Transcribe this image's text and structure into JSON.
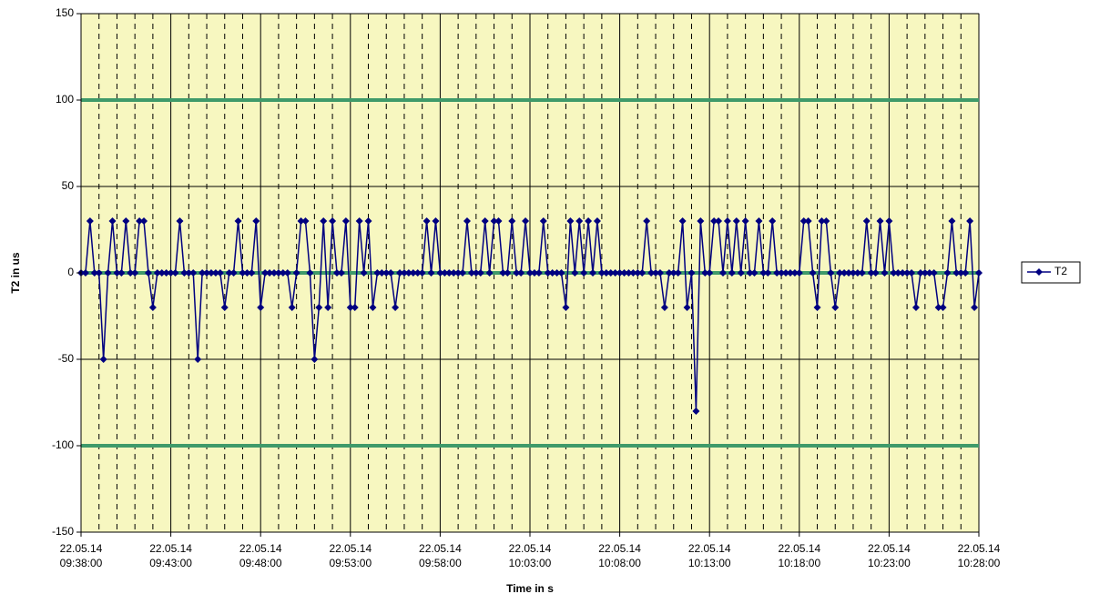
{
  "chart_data": {
    "type": "line",
    "x_label": "Time in s",
    "y_label": "T2 in us",
    "ylim": [
      -150,
      150
    ],
    "yticks": [
      -150,
      -100,
      -50,
      0,
      50,
      100,
      150
    ],
    "xlim": [
      "22.05.14 09:38:00",
      "22.05.14 10:28:00"
    ],
    "xticks": [
      "22.05.14 09:38:00",
      "22.05.14 09:43:00",
      "22.05.14 09:48:00",
      "22.05.14 09:53:00",
      "22.05.14 09:58:00",
      "22.05.14 10:03:00",
      "22.05.14 10:08:00",
      "22.05.14 10:13:00",
      "22.05.14 10:18:00",
      "22.05.14 10:23:00",
      "22.05.14 10:28:00"
    ],
    "grid": true,
    "legend": "right",
    "background": "#f7f7c0",
    "reference_lines": [
      {
        "value": 100,
        "color": "#3f9a6a"
      },
      {
        "value": -100,
        "color": "#3f9a6a"
      },
      {
        "value": 0,
        "color": "#3f9a6a"
      }
    ],
    "x": [
      "22.05.14 09:38:00",
      "22.05.14 09:38:15",
      "22.05.14 09:38:30",
      "22.05.14 09:38:45",
      "22.05.14 09:39:00",
      "22.05.14 09:39:15",
      "22.05.14 09:39:30",
      "22.05.14 09:39:45",
      "22.05.14 09:40:00",
      "22.05.14 09:40:15",
      "22.05.14 09:40:30",
      "22.05.14 09:40:45",
      "22.05.14 09:41:00",
      "22.05.14 09:41:15",
      "22.05.14 09:41:30",
      "22.05.14 09:41:45",
      "22.05.14 09:42:00",
      "22.05.14 09:42:15",
      "22.05.14 09:42:30",
      "22.05.14 09:42:45",
      "22.05.14 09:43:00",
      "22.05.14 09:43:15",
      "22.05.14 09:43:30",
      "22.05.14 09:43:45",
      "22.05.14 09:44:00",
      "22.05.14 09:44:15",
      "22.05.14 09:44:30",
      "22.05.14 09:44:45",
      "22.05.14 09:45:00",
      "22.05.14 09:45:15",
      "22.05.14 09:45:30",
      "22.05.14 09:45:45",
      "22.05.14 09:46:00",
      "22.05.14 09:46:15",
      "22.05.14 09:46:30",
      "22.05.14 09:46:45",
      "22.05.14 09:47:00",
      "22.05.14 09:47:15",
      "22.05.14 09:47:30",
      "22.05.14 09:47:45",
      "22.05.14 09:48:00",
      "22.05.14 09:48:15",
      "22.05.14 09:48:30",
      "22.05.14 09:48:45",
      "22.05.14 09:49:00",
      "22.05.14 09:49:15",
      "22.05.14 09:49:30",
      "22.05.14 09:49:45",
      "22.05.14 09:50:00",
      "22.05.14 09:50:15",
      "22.05.14 09:50:30",
      "22.05.14 09:50:45",
      "22.05.14 09:51:00",
      "22.05.14 09:51:15",
      "22.05.14 09:51:30",
      "22.05.14 09:51:45",
      "22.05.14 09:52:00",
      "22.05.14 09:52:15",
      "22.05.14 09:52:30",
      "22.05.14 09:52:45",
      "22.05.14 09:53:00",
      "22.05.14 09:53:15",
      "22.05.14 09:53:30",
      "22.05.14 09:53:45",
      "22.05.14 09:54:00",
      "22.05.14 09:54:15",
      "22.05.14 09:54:30",
      "22.05.14 09:54:45",
      "22.05.14 09:55:00",
      "22.05.14 09:55:15",
      "22.05.14 09:55:30",
      "22.05.14 09:55:45",
      "22.05.14 09:56:00",
      "22.05.14 09:56:15",
      "22.05.14 09:56:30",
      "22.05.14 09:56:45",
      "22.05.14 09:57:00",
      "22.05.14 09:57:15",
      "22.05.14 09:57:30",
      "22.05.14 09:57:45",
      "22.05.14 09:58:00",
      "22.05.14 09:58:15",
      "22.05.14 09:58:30",
      "22.05.14 09:58:45",
      "22.05.14 09:59:00",
      "22.05.14 09:59:15",
      "22.05.14 09:59:30",
      "22.05.14 09:59:45",
      "22.05.14 10:00:00",
      "22.05.14 10:00:15",
      "22.05.14 10:00:30",
      "22.05.14 10:00:45",
      "22.05.14 10:01:00",
      "22.05.14 10:01:15",
      "22.05.14 10:01:30",
      "22.05.14 10:01:45",
      "22.05.14 10:02:00",
      "22.05.14 10:02:15",
      "22.05.14 10:02:30",
      "22.05.14 10:02:45",
      "22.05.14 10:03:00",
      "22.05.14 10:03:15",
      "22.05.14 10:03:30",
      "22.05.14 10:03:45",
      "22.05.14 10:04:00",
      "22.05.14 10:04:15",
      "22.05.14 10:04:30",
      "22.05.14 10:04:45",
      "22.05.14 10:05:00",
      "22.05.14 10:05:15",
      "22.05.14 10:05:30",
      "22.05.14 10:05:45",
      "22.05.14 10:06:00",
      "22.05.14 10:06:15",
      "22.05.14 10:06:30",
      "22.05.14 10:06:45",
      "22.05.14 10:07:00",
      "22.05.14 10:07:15",
      "22.05.14 10:07:30",
      "22.05.14 10:07:45",
      "22.05.14 10:08:00",
      "22.05.14 10:08:15",
      "22.05.14 10:08:30",
      "22.05.14 10:08:45",
      "22.05.14 10:09:00",
      "22.05.14 10:09:15",
      "22.05.14 10:09:30",
      "22.05.14 10:09:45",
      "22.05.14 10:10:00",
      "22.05.14 10:10:15",
      "22.05.14 10:10:30",
      "22.05.14 10:10:45",
      "22.05.14 10:11:00",
      "22.05.14 10:11:15",
      "22.05.14 10:11:30",
      "22.05.14 10:11:45",
      "22.05.14 10:12:00",
      "22.05.14 10:12:15",
      "22.05.14 10:12:30",
      "22.05.14 10:12:45",
      "22.05.14 10:13:00",
      "22.05.14 10:13:15",
      "22.05.14 10:13:30",
      "22.05.14 10:13:45",
      "22.05.14 10:14:00",
      "22.05.14 10:14:15",
      "22.05.14 10:14:30",
      "22.05.14 10:14:45",
      "22.05.14 10:15:00",
      "22.05.14 10:15:15",
      "22.05.14 10:15:30",
      "22.05.14 10:15:45",
      "22.05.14 10:16:00",
      "22.05.14 10:16:15",
      "22.05.14 10:16:30",
      "22.05.14 10:16:45",
      "22.05.14 10:17:00",
      "22.05.14 10:17:15",
      "22.05.14 10:17:30",
      "22.05.14 10:17:45",
      "22.05.14 10:18:00",
      "22.05.14 10:18:15",
      "22.05.14 10:18:30",
      "22.05.14 10:18:45",
      "22.05.14 10:19:00",
      "22.05.14 10:19:15",
      "22.05.14 10:19:30",
      "22.05.14 10:19:45",
      "22.05.14 10:20:00",
      "22.05.14 10:20:15",
      "22.05.14 10:20:30",
      "22.05.14 10:20:45",
      "22.05.14 10:21:00",
      "22.05.14 10:21:15",
      "22.05.14 10:21:30",
      "22.05.14 10:21:45",
      "22.05.14 10:22:00",
      "22.05.14 10:22:15",
      "22.05.14 10:22:30",
      "22.05.14 10:22:45",
      "22.05.14 10:23:00",
      "22.05.14 10:23:15",
      "22.05.14 10:23:30",
      "22.05.14 10:23:45",
      "22.05.14 10:24:00",
      "22.05.14 10:24:15",
      "22.05.14 10:24:30",
      "22.05.14 10:24:45",
      "22.05.14 10:25:00",
      "22.05.14 10:25:15",
      "22.05.14 10:25:30",
      "22.05.14 10:25:45",
      "22.05.14 10:26:00",
      "22.05.14 10:26:15",
      "22.05.14 10:26:30",
      "22.05.14 10:26:45",
      "22.05.14 10:27:00",
      "22.05.14 10:27:15",
      "22.05.14 10:27:30",
      "22.05.14 10:27:45",
      "22.05.14 10:28:00"
    ],
    "series": [
      {
        "name": "T2",
        "color": "#000080",
        "values": [
          0,
          0,
          30,
          0,
          0,
          -50,
          0,
          30,
          0,
          0,
          30,
          0,
          0,
          30,
          30,
          0,
          -20,
          0,
          0,
          0,
          0,
          0,
          30,
          0,
          0,
          0,
          -50,
          0,
          0,
          0,
          0,
          0,
          -20,
          0,
          0,
          30,
          0,
          0,
          0,
          30,
          -20,
          0,
          0,
          0,
          0,
          0,
          0,
          -20,
          0,
          30,
          30,
          0,
          -50,
          -20,
          30,
          -20,
          30,
          0,
          0,
          30,
          -20,
          -20,
          30,
          0,
          30,
          -20,
          0,
          0,
          0,
          0,
          -20,
          0,
          0,
          0,
          0,
          0,
          0,
          30,
          0,
          30,
          0,
          0,
          0,
          0,
          0,
          0,
          30,
          0,
          0,
          0,
          30,
          0,
          30,
          30,
          0,
          0,
          30,
          0,
          0,
          30,
          0,
          0,
          0,
          30,
          0,
          0,
          0,
          0,
          -20,
          30,
          0,
          30,
          0,
          30,
          0,
          30,
          0,
          0,
          0,
          0,
          0,
          0,
          0,
          0,
          0,
          0,
          30,
          0,
          0,
          0,
          -20,
          0,
          0,
          0,
          30,
          -20,
          0,
          -80,
          30,
          0,
          0,
          30,
          30,
          0,
          30,
          0,
          30,
          0,
          30,
          0,
          0,
          30,
          0,
          0,
          30,
          0,
          0,
          0,
          0,
          0,
          0,
          30,
          30,
          0,
          -20,
          30,
          30,
          0,
          -20,
          0,
          0,
          0,
          0,
          0,
          0,
          30,
          0,
          0,
          30,
          0,
          30,
          0,
          0,
          0,
          0,
          0,
          -20,
          0,
          0,
          0,
          0,
          -20,
          -20,
          0,
          30,
          0,
          0,
          0,
          30,
          -20,
          0
        ]
      }
    ]
  }
}
